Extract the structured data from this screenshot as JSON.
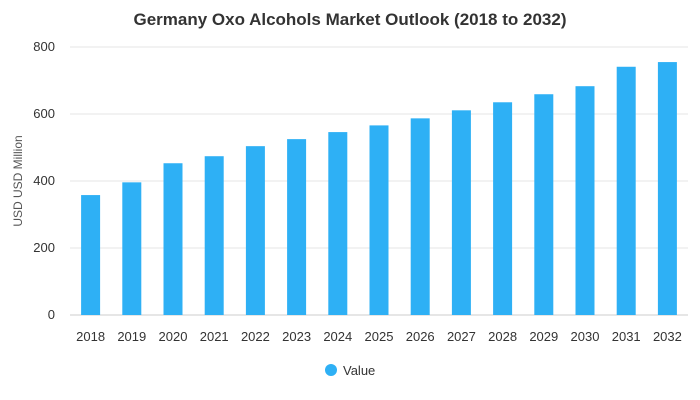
{
  "chart_data": {
    "type": "bar",
    "title": "Germany Oxo Alcohols Market Outlook (2018 to 2032)",
    "ylabel": "USD USD Million",
    "xlabel": "",
    "categories": [
      "2018",
      "2019",
      "2020",
      "2021",
      "2022",
      "2023",
      "2024",
      "2025",
      "2026",
      "2027",
      "2028",
      "2029",
      "2030",
      "2031",
      "2032"
    ],
    "series": [
      {
        "name": "Value",
        "values": [
          358,
          396,
          453,
          474,
          504,
          525,
          546,
          566,
          587,
          611,
          635,
          659,
          683,
          741,
          755
        ]
      }
    ],
    "ylim": [
      0,
      800
    ],
    "yticks": [
      0,
      200,
      400,
      600,
      800
    ],
    "grid": true,
    "legend_position": "bottom",
    "colors": {
      "bar": "#2eb0f5"
    }
  }
}
